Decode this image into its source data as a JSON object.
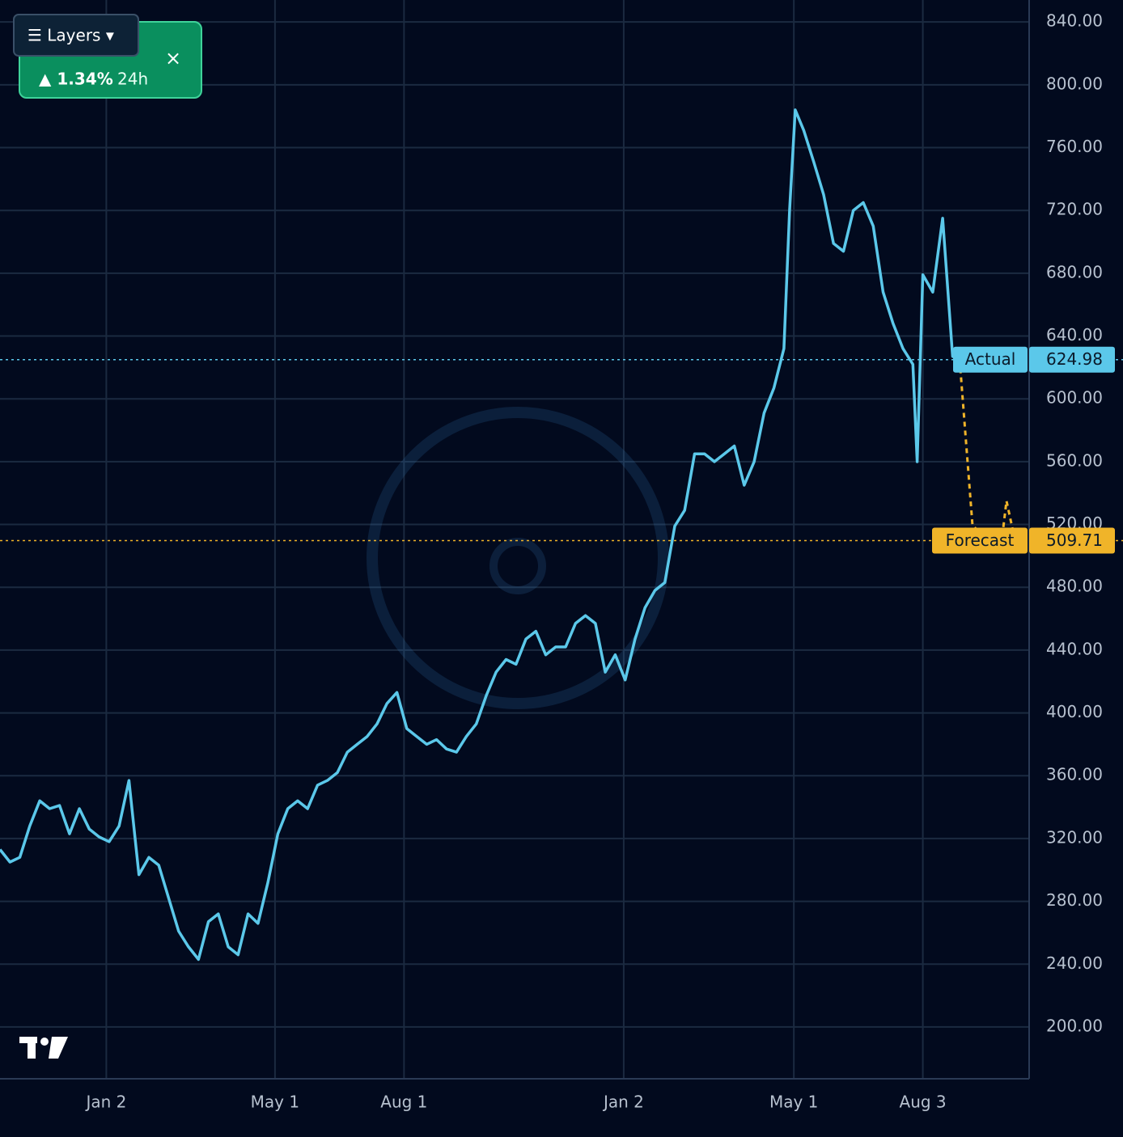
{
  "chart_data": {
    "type": "line",
    "series": [
      {
        "name": "Actual",
        "color": "#5bc8ea",
        "x": [
          0,
          7,
          14,
          21,
          28,
          35,
          42,
          49,
          56,
          63,
          70,
          77,
          84,
          91,
          98,
          105,
          112,
          119,
          126,
          133,
          140,
          147,
          154,
          161,
          168,
          175,
          182,
          189,
          196,
          203,
          210,
          217,
          224,
          231,
          238,
          245,
          252,
          259,
          266,
          273,
          280,
          287,
          294,
          301,
          308,
          315,
          322,
          329,
          336,
          343,
          350,
          357,
          364,
          371,
          378,
          385,
          392,
          399,
          406,
          413,
          420,
          427,
          434,
          441,
          448,
          455,
          462,
          469,
          476,
          483,
          490,
          497,
          504,
          511,
          518,
          525,
          532,
          539,
          546,
          553,
          557,
          561,
          567,
          574,
          581,
          588,
          595,
          602,
          609,
          616,
          623,
          630,
          637,
          644,
          647,
          651,
          658,
          665,
          672,
          677
        ],
        "values": [
          313,
          305,
          308,
          328,
          344,
          339,
          341,
          323,
          339,
          326,
          321,
          318,
          328,
          357,
          297,
          308,
          303,
          282,
          261,
          251,
          243,
          267,
          272,
          251,
          246,
          272,
          266,
          292,
          323,
          339,
          344,
          339,
          354,
          357,
          362,
          375,
          380,
          385,
          393,
          406,
          413,
          390,
          385,
          380,
          383,
          377,
          375,
          385,
          393,
          411,
          426,
          434,
          431,
          447,
          452,
          437,
          442,
          442,
          457,
          462,
          457,
          426,
          437,
          421,
          447,
          467,
          478,
          483,
          519,
          529,
          565,
          565,
          560,
          565,
          570,
          545,
          560,
          591,
          607,
          632,
          720,
          784,
          771,
          751,
          730,
          699,
          694,
          720,
          725,
          710,
          668,
          648,
          632,
          622,
          560,
          679,
          668,
          715,
          627,
          624.98
        ]
      },
      {
        "name": "Forecast",
        "color": "#f0b429",
        "x": [
          677,
          686,
          693,
          700,
          706,
          710,
          716,
          722
        ],
        "values": [
          624.98,
          520,
          512,
          515,
          505,
          535,
          510,
          509.71
        ]
      }
    ],
    "xlim": [
      0,
      726
    ],
    "ylim": [
      167,
      854
    ],
    "xticks": [
      {
        "value": 75,
        "label": "Jan 2"
      },
      {
        "value": 194,
        "label": "May 1"
      },
      {
        "value": 285,
        "label": "Aug 1"
      },
      {
        "value": 440,
        "label": "Jan 2"
      },
      {
        "value": 560,
        "label": "May 1"
      },
      {
        "value": 651,
        "label": "Aug 3"
      }
    ],
    "yticks": [
      {
        "value": 200,
        "label": "200.00"
      },
      {
        "value": 240,
        "label": "240.00"
      },
      {
        "value": 280,
        "label": "280.00"
      },
      {
        "value": 320,
        "label": "320.00"
      },
      {
        "value": 360,
        "label": "360.00"
      },
      {
        "value": 400,
        "label": "400.00"
      },
      {
        "value": 440,
        "label": "440.00"
      },
      {
        "value": 480,
        "label": "480.00"
      },
      {
        "value": 520,
        "label": "520.00"
      },
      {
        "value": 560,
        "label": "560.00"
      },
      {
        "value": 600,
        "label": "600.00"
      },
      {
        "value": 640,
        "label": "640.00"
      },
      {
        "value": 680,
        "label": "680.00"
      },
      {
        "value": 720,
        "label": "720.00"
      },
      {
        "value": 760,
        "label": "760.00"
      },
      {
        "value": 800,
        "label": "800.00"
      },
      {
        "value": 840,
        "label": "840.00"
      }
    ],
    "grid": true
  },
  "ui": {
    "layers_button": "☰ Layers ▾",
    "change": "▲ 1.34%",
    "period": "24h",
    "close": "×"
  }
}
